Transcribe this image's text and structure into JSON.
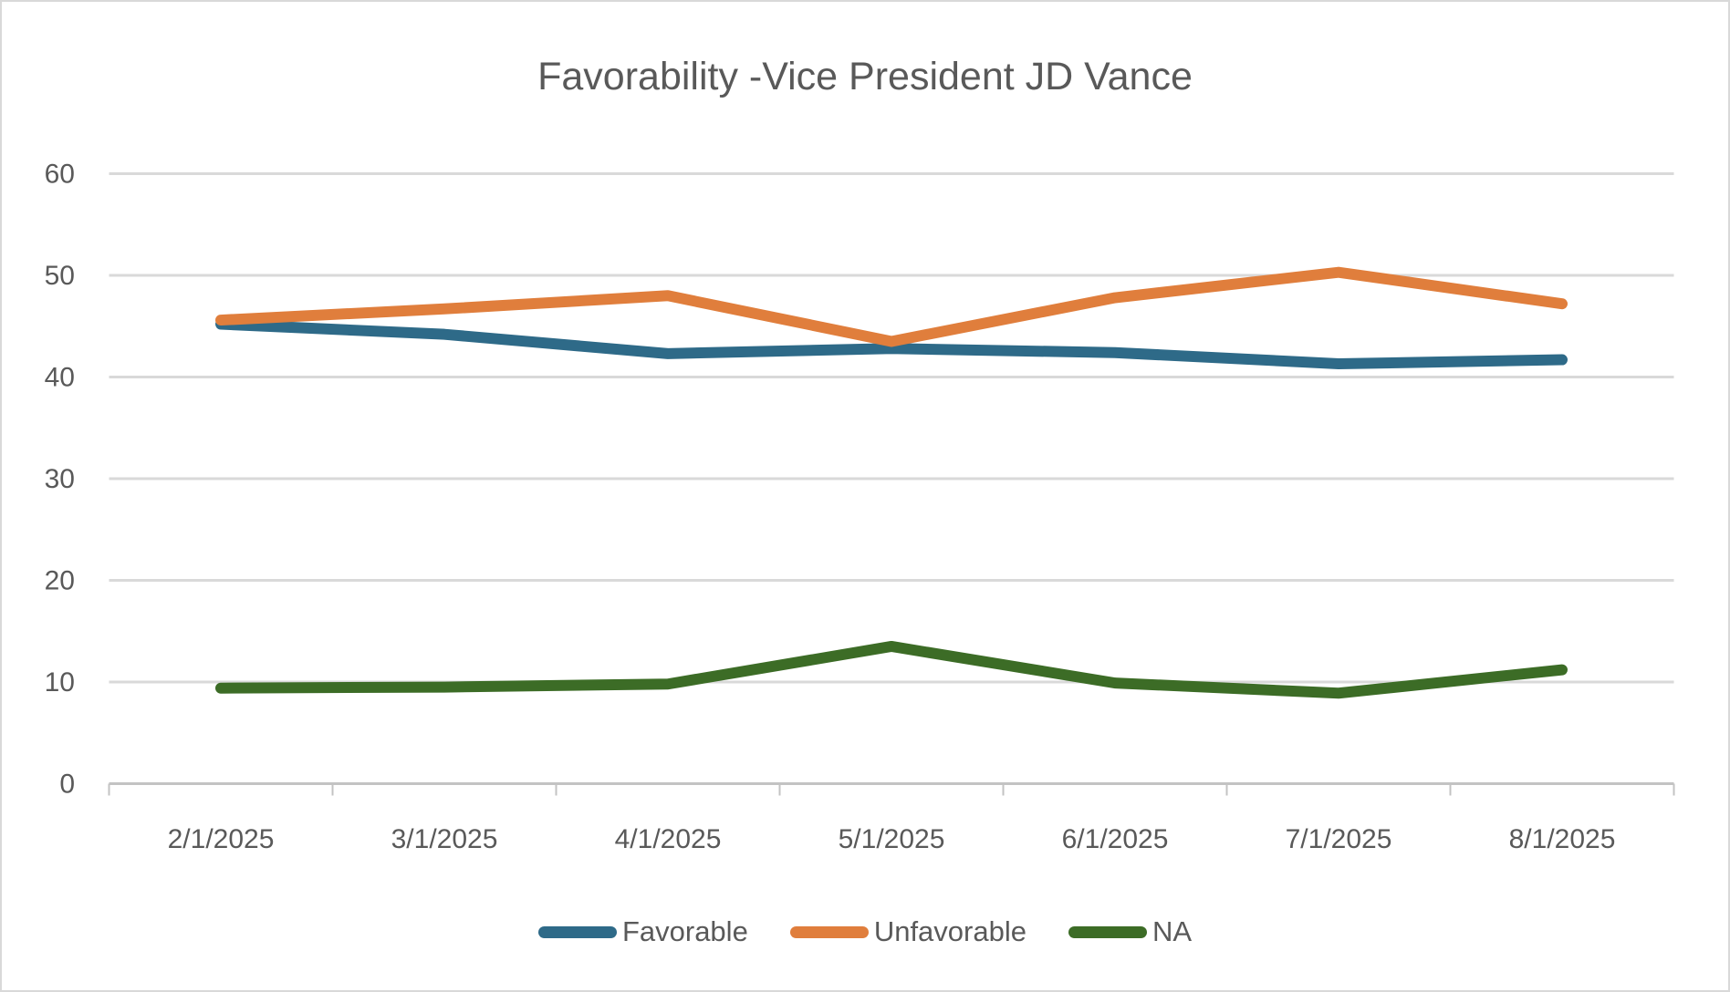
{
  "chart_data": {
    "type": "line",
    "title": "Favorability -Vice President JD Vance",
    "categories": [
      "2/1/2025",
      "3/1/2025",
      "4/1/2025",
      "5/1/2025",
      "6/1/2025",
      "7/1/2025",
      "8/1/2025"
    ],
    "series": [
      {
        "name": "Favorable",
        "color": "#2E6A88",
        "values": [
          45.2,
          44.2,
          42.3,
          42.8,
          42.4,
          41.3,
          41.7
        ]
      },
      {
        "name": "Unfavorable",
        "color": "#E07E3C",
        "values": [
          45.6,
          46.7,
          48.0,
          43.5,
          47.8,
          50.3,
          47.2
        ]
      },
      {
        "name": "NA",
        "color": "#3C6C26",
        "values": [
          9.4,
          9.5,
          9.8,
          13.5,
          9.9,
          8.9,
          11.2
        ]
      }
    ],
    "ylim": [
      0,
      60
    ],
    "yticks": [
      0,
      10,
      20,
      30,
      40,
      50,
      60
    ],
    "grid": true,
    "legend_position": "bottom",
    "styles": {
      "text_color": "#595959",
      "gridline_color": "#d9d9d9",
      "axis_line_color": "#c3c3c3",
      "background": "#ffffff",
      "line_width": 12
    }
  }
}
